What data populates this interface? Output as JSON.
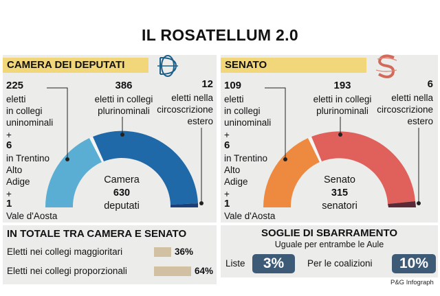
{
  "title": "IL ROSATELLUM 2.0",
  "camera": {
    "header": "CAMERA DEI DEPUTATI",
    "logo": "dc-monogram-icon",
    "uni_num": "225",
    "uni_lbl": [
      "eletti",
      "in collegi",
      "uninominali"
    ],
    "pluri_num": "386",
    "pluri_lbl": [
      "eletti in collegi",
      "plurinominali"
    ],
    "estero_num": "12",
    "estero_lbl": [
      "eletti nella",
      "circoscrizione",
      "estero"
    ],
    "trentino_plus": "+",
    "trentino_num": "6",
    "trentino_lbl": [
      "in Trentino",
      "Alto",
      "Adige"
    ],
    "aosta_plus": "+",
    "aosta_num": "1",
    "aosta_lbl": "Vale d'Aosta",
    "center_top": "Camera",
    "center_num": "630",
    "center_bottom": "deputati"
  },
  "senato": {
    "header": "SENATO",
    "logo": "s-monogram-icon",
    "uni_num": "109",
    "uni_lbl": [
      "eletti",
      "in collegi",
      "uninominali"
    ],
    "pluri_num": "193",
    "pluri_lbl": [
      "eletti in collegi",
      "plurinominali"
    ],
    "estero_num": "6",
    "estero_lbl": [
      "eletti nella",
      "circoscrizione",
      "estero"
    ],
    "trentino_plus": "+",
    "trentino_num": "6",
    "trentino_lbl": [
      "in Trentino",
      "Alto",
      "Adige"
    ],
    "aosta_plus": "+",
    "aosta_num": "1",
    "aosta_lbl": "Vale d'Aosta",
    "center_top": "Senato",
    "center_num": "315",
    "center_bottom": "senatori"
  },
  "totals": {
    "header": "IN TOTALE TRA CAMERA E SENATO",
    "rows": [
      {
        "label": "Eletti nei collegi maggioritari",
        "pct": "36%",
        "value": 36
      },
      {
        "label": "Eletti nei collegi proporzionali",
        "pct": "64%",
        "value": 64
      }
    ]
  },
  "soglie": {
    "header": "SOGLIE DI SBARRAMENTO",
    "subtitle": "Uguale per entrambe le Aule",
    "liste_lbl": "Liste",
    "liste_val": "3%",
    "coal_lbl": "Per le coalizioni",
    "coal_val": "10%"
  },
  "credit": "P&G Infograph",
  "colors": {
    "camera_light": "#5aaed3",
    "camera_dark": "#1f69a8",
    "camera_navy": "#1d3f78",
    "senato_light": "#ee8a3f",
    "senato_red": "#e0615c",
    "senato_dark": "#5a2a36",
    "band": "#f2d77a",
    "panel": "#ececeb",
    "badge": "#3d5b77",
    "bar": "#d1c1a2"
  }
}
